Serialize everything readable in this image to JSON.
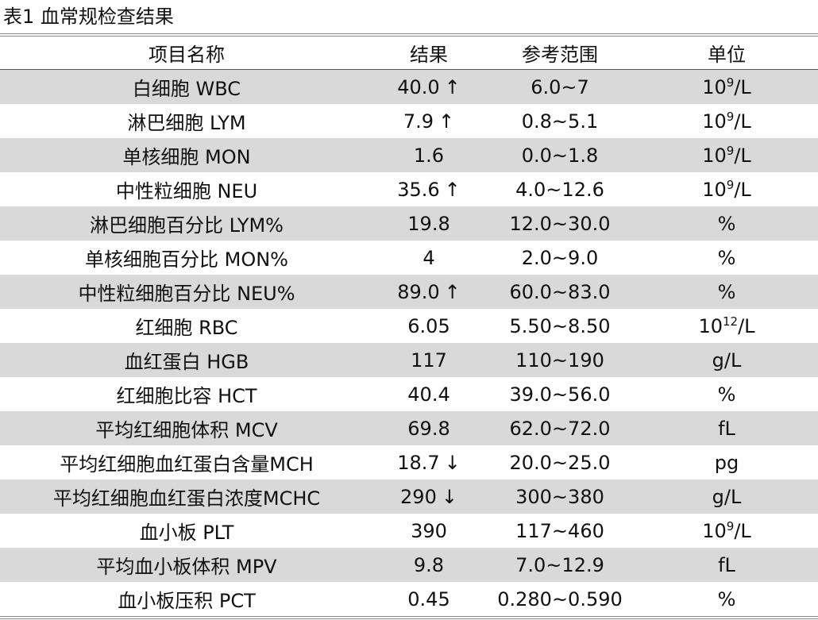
{
  "title": "表1 血常规检查结果",
  "table": {
    "header": [
      "项目名称",
      "结果",
      "参考范围",
      "单位"
    ],
    "rows": [
      {
        "item": "白细胞 WBC",
        "result": "40.0",
        "flag": "↑",
        "range": "6.0~7",
        "unit": {
          "base": "10",
          "sup": "9",
          "tail": "/L"
        }
      },
      {
        "item": "淋巴细胞 LYM",
        "result": "7.9",
        "flag": "↑",
        "range": "0.8~5.1",
        "unit": {
          "base": "10",
          "sup": "9",
          "tail": "/L"
        }
      },
      {
        "item": "单核细胞 MON",
        "result": "1.6",
        "range": "0.0~1.8",
        "unit": {
          "base": "10",
          "sup": "9",
          "tail": "/L"
        }
      },
      {
        "item": "中性粒细胞 NEU",
        "result": "35.6",
        "flag": "↑",
        "range": "4.0~12.6",
        "unit": {
          "base": "10",
          "sup": "9",
          "tail": "/L"
        }
      },
      {
        "item": "淋巴细胞百分比 LYM%",
        "result": "19.8",
        "range": "12.0~30.0",
        "unit": "%"
      },
      {
        "item": "单核细胞百分比 MON%",
        "result": "4",
        "range": "2.0~9.0",
        "unit": "%"
      },
      {
        "item": "中性粒细胞百分比 NEU%",
        "result": "89.0",
        "flag": "↑",
        "range": "60.0~83.0",
        "unit": "%"
      },
      {
        "item": "红细胞 RBC",
        "result": "6.05",
        "range": "5.50~8.50",
        "unit": {
          "base": "10",
          "sup": "12",
          "tail": "/L"
        }
      },
      {
        "item": "血红蛋白 HGB",
        "result": "117",
        "range": "110~190",
        "unit": "g/L"
      },
      {
        "item": "红细胞比容 HCT",
        "result": "40.4",
        "range": "39.0~56.0",
        "unit": "%"
      },
      {
        "item": "平均红细胞体积 MCV",
        "result": "69.8",
        "range": "62.0~72.0",
        "unit": "fL"
      },
      {
        "item": "平均红细胞血红蛋白含量MCH",
        "result": "18.7",
        "flag": "↓",
        "range": "20.0~25.0",
        "unit": "pg"
      },
      {
        "item": "平均红细胞血红蛋白浓度MCHC",
        "result": "290",
        "flag": "↓",
        "range": "300~380",
        "unit": "g/L"
      },
      {
        "item": "血小板 PLT",
        "result": "390",
        "range": "117~460",
        "unit": {
          "base": "10",
          "sup": "9",
          "tail": "/L"
        }
      },
      {
        "item": "平均血小板体积 MPV",
        "result": "9.8",
        "range": "7.0~12.9",
        "unit": "fL"
      },
      {
        "item": "血小板压积 PCT",
        "result": "0.45",
        "range": "0.280~0.590",
        "unit": "%"
      }
    ]
  }
}
